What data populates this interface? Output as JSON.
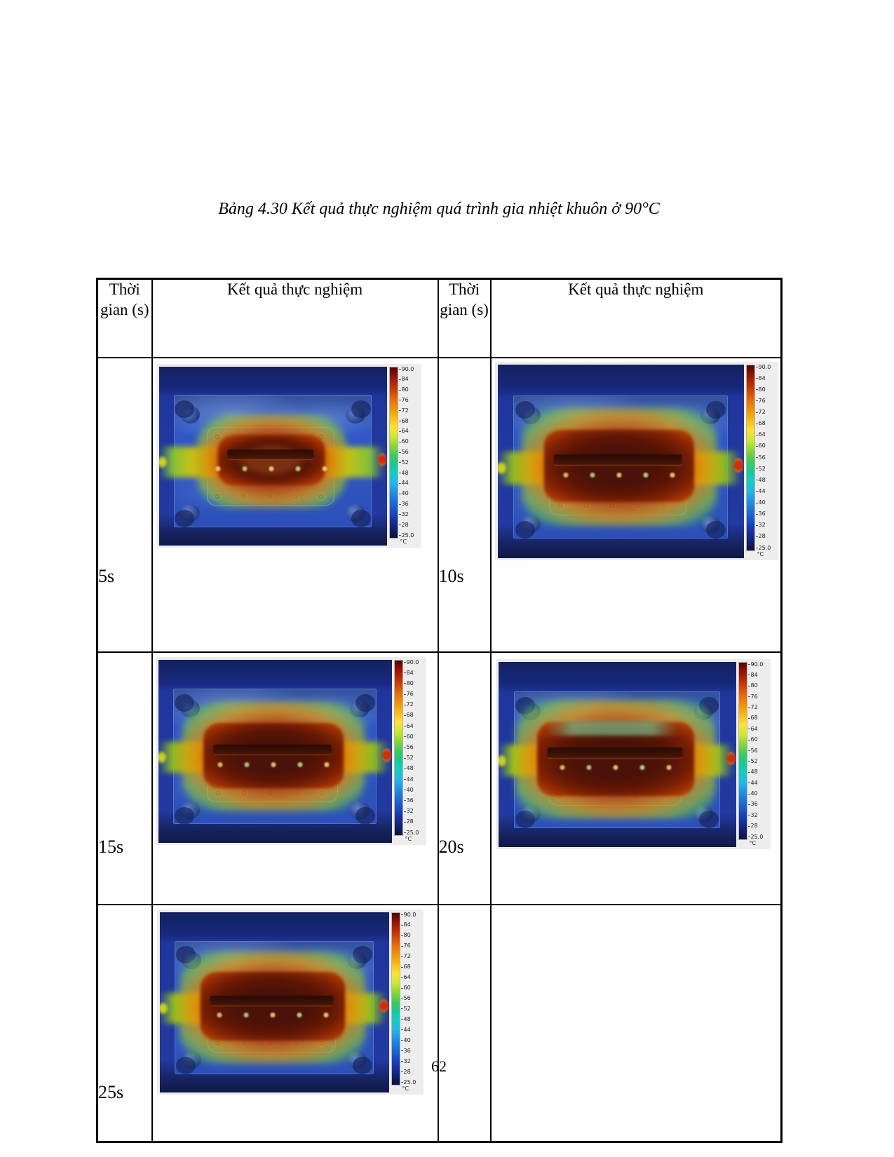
{
  "page": {
    "title": "Bảng 4.30 Kết quả thực nghiệm quá trình gia nhiệt khuôn ở 90°C",
    "page_number": "62"
  },
  "table": {
    "header": {
      "time_label": "Thời gian (s)",
      "result_label": "Kết quả thực nghiệm"
    },
    "colorbar": {
      "unit": "°C",
      "ticks": [
        "90.0",
        "84",
        "80",
        "76",
        "72",
        "68",
        "64",
        "60",
        "56",
        "52",
        "48",
        "44",
        "40",
        "36",
        "32",
        "28",
        "25.0"
      ]
    },
    "rows": [
      {
        "cells": [
          {
            "time": "5s",
            "image": "thermal-view-mold-5s",
            "heat_spread": "small"
          },
          {
            "time": "10s",
            "image": "thermal-view-mold-10s",
            "heat_spread": "medium"
          }
        ]
      },
      {
        "cells": [
          {
            "time": "15s",
            "image": "thermal-view-mold-15s",
            "heat_spread": "medium"
          },
          {
            "time": "20s",
            "image": "thermal-view-mold-20s",
            "heat_spread": "large"
          }
        ]
      },
      {
        "cells": [
          {
            "time": "25s",
            "image": "thermal-view-mold-25s",
            "heat_spread": "large"
          },
          null
        ]
      }
    ]
  }
}
